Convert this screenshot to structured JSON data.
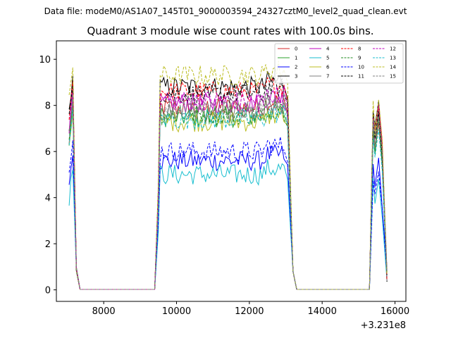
{
  "chart_data": {
    "type": "line",
    "suptitle": "Data file: modeM0/AS1A07_145T01_9000003594_24327cztM0_level2_quad_clean.evt",
    "title": "Quadrant 3 module wise count rates with 100.0s bins.",
    "xlabel": "",
    "ylabel": "",
    "x_offset_label": "+3.231e8",
    "xlim": [
      6700,
      16300
    ],
    "ylim": [
      -0.5,
      10.8
    ],
    "xticks": [
      8000,
      10000,
      12000,
      14000,
      16000
    ],
    "xtick_labels": [
      "8000",
      "10000",
      "12000",
      "14000",
      "16000"
    ],
    "yticks": [
      0,
      2,
      4,
      6,
      8,
      10
    ],
    "ytick_labels": [
      "0",
      "2",
      "4",
      "6",
      "8",
      "10"
    ],
    "x": [
      7050,
      7150,
      7250,
      7350,
      7450,
      8500,
      9400,
      9500,
      9600,
      13100,
      13200,
      13300,
      14000,
      15300,
      15400,
      15500,
      15600,
      15700,
      15800
    ],
    "legend_position": "top-right",
    "series": [
      {
        "name": "0",
        "color": "#d62728",
        "dash": "solid",
        "level": 7.9,
        "peak2": 7.0
      },
      {
        "name": "1",
        "color": "#2ca02c",
        "dash": "solid",
        "level": 7.5,
        "peak2": 7.2
      },
      {
        "name": "2",
        "color": "#0000ff",
        "dash": "solid",
        "level": 5.6,
        "peak2": 5.4
      },
      {
        "name": "3",
        "color": "#000000",
        "dash": "solid",
        "level": 8.8,
        "peak2": 7.9
      },
      {
        "name": "4",
        "color": "#bf00bf",
        "dash": "solid",
        "level": 8.1,
        "peak2": 7.6
      },
      {
        "name": "5",
        "color": "#17becf",
        "dash": "solid",
        "level": 5.0,
        "peak2": 4.6
      },
      {
        "name": "6",
        "color": "#bcbd22",
        "dash": "solid",
        "level": 7.3,
        "peak2": 7.4
      },
      {
        "name": "7",
        "color": "#7f7f7f",
        "dash": "solid",
        "level": 7.7,
        "peak2": 7.3
      },
      {
        "name": "8",
        "color": "#ff0000",
        "dash": "dashed",
        "level": 8.6,
        "peak2": 7.8
      },
      {
        "name": "9",
        "color": "#228b22",
        "dash": "dashed",
        "level": 7.6,
        "peak2": 7.1
      },
      {
        "name": "10",
        "color": "#0000ff",
        "dash": "dashed",
        "level": 6.0,
        "peak2": 5.0
      },
      {
        "name": "11",
        "color": "#000000",
        "dash": "dashed",
        "level": 8.5,
        "peak2": 7.5
      },
      {
        "name": "12",
        "color": "#bf00bf",
        "dash": "dashed",
        "level": 8.2,
        "peak2": 7.7
      },
      {
        "name": "13",
        "color": "#17becf",
        "dash": "dashed",
        "level": 7.4,
        "peak2": 6.8
      },
      {
        "name": "14",
        "color": "#bcbd22",
        "dash": "dashed",
        "level": 9.3,
        "peak2": 8.1
      },
      {
        "name": "15",
        "color": "#7f7f7f",
        "dash": "dashed",
        "level": 7.9,
        "peak2": 7.4
      }
    ]
  }
}
